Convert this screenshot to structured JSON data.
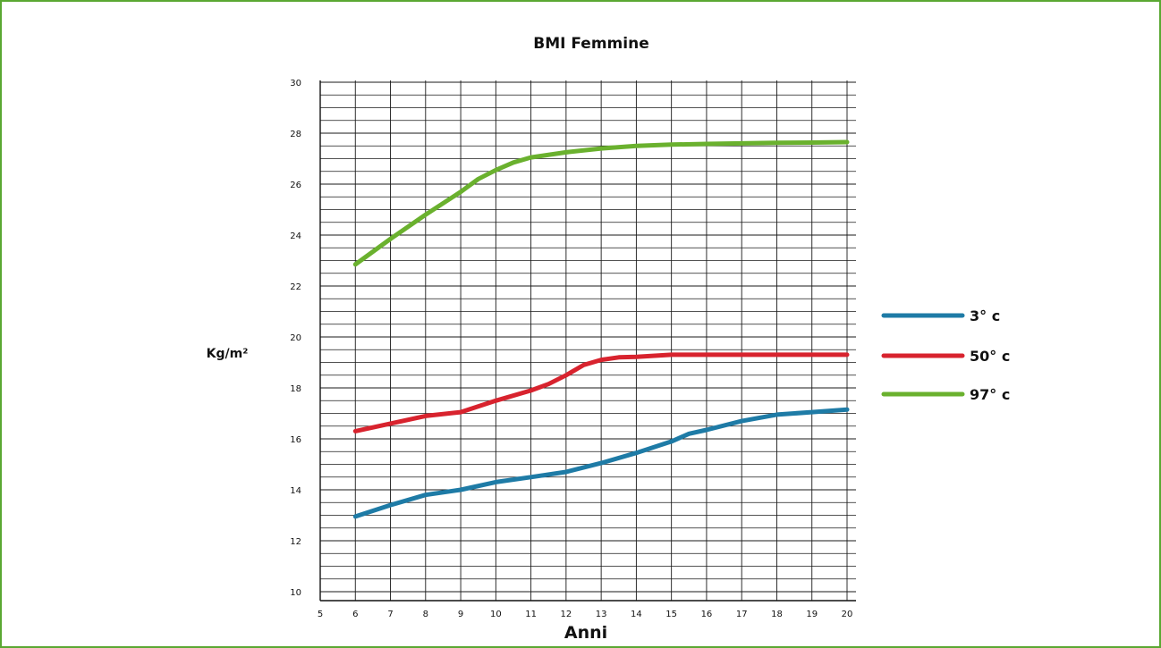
{
  "chart_data": {
    "type": "line",
    "title": "BMI Femmine",
    "xlabel": "Anni",
    "ylabel": "Kg/m²",
    "xlim": [
      5,
      20
    ],
    "ylim": [
      10,
      30
    ],
    "x_ticks": [
      5,
      6,
      7,
      8,
      9,
      10,
      11,
      12,
      13,
      14,
      15,
      16,
      17,
      18,
      19,
      20
    ],
    "y_ticks": [
      10,
      12,
      14,
      16,
      18,
      20,
      22,
      24,
      26,
      28,
      30
    ],
    "grid": true,
    "legend_position": "right",
    "series": [
      {
        "name": "3° c",
        "color": "#1e7ba6",
        "x": [
          6,
          7,
          8,
          9,
          10,
          11,
          12,
          13,
          14,
          15,
          15.5,
          16,
          17,
          18,
          19,
          20
        ],
        "y": [
          12.95,
          13.4,
          13.8,
          14.0,
          14.3,
          14.5,
          14.7,
          15.05,
          15.45,
          15.9,
          16.2,
          16.35,
          16.7,
          16.95,
          17.05,
          17.15
        ]
      },
      {
        "name": "50° c",
        "color": "#d8232e",
        "x": [
          6,
          7,
          8,
          9,
          10,
          11,
          11.5,
          12,
          12.5,
          13,
          13.5,
          14,
          15,
          16,
          17,
          18,
          19,
          20
        ],
        "y": [
          16.3,
          16.6,
          16.9,
          17.05,
          17.5,
          17.9,
          18.15,
          18.5,
          18.9,
          19.1,
          19.2,
          19.22,
          19.3,
          19.3,
          19.3,
          19.3,
          19.3,
          19.3
        ]
      },
      {
        "name": "97° c",
        "color": "#6ab12e",
        "x": [
          6,
          7,
          8,
          9,
          9.5,
          10,
          10.5,
          11,
          12,
          13,
          14,
          15,
          16,
          17,
          18,
          19,
          20
        ],
        "y": [
          22.85,
          23.85,
          24.8,
          25.7,
          26.2,
          26.55,
          26.85,
          27.05,
          27.25,
          27.4,
          27.5,
          27.55,
          27.58,
          27.6,
          27.62,
          27.63,
          27.65
        ]
      }
    ]
  }
}
